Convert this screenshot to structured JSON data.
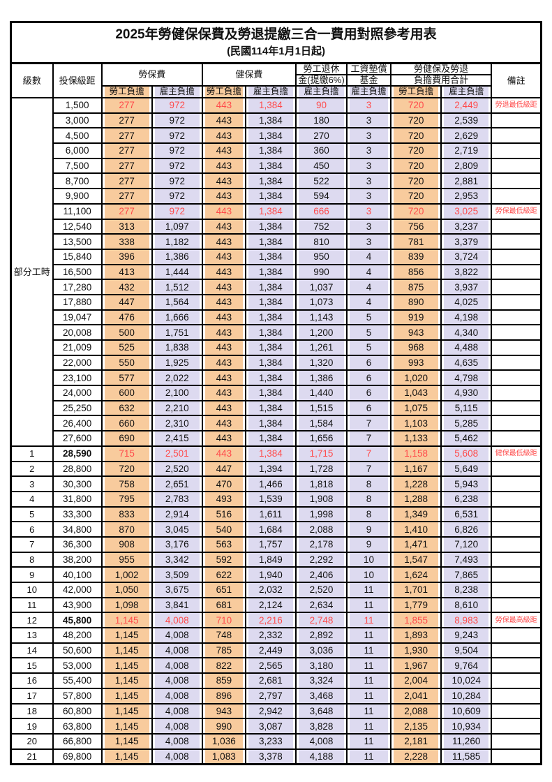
{
  "title": "2025年勞健保保費及勞退提繳三合一費用對照參考用表",
  "subtitle": "(民國114年1月1日起)",
  "colors": {
    "employee_fill": "#F8CB9D",
    "employer_fill": "#DDDAF0",
    "highlight_red": "#FF4B4B",
    "border": "#000000"
  },
  "header": {
    "level": "級數",
    "salary": "投保級距",
    "labor": "勞保費",
    "health": "健保費",
    "pension_l1": "勞工退休",
    "pension_l2": "金(提繳6%)",
    "wage_l1": "工資墊償",
    "wage_l2": "基金",
    "total_l1": "勞健保及勞退",
    "total_l2": "負擔費用合計",
    "remark": "備註",
    "employee": "勞工負擔",
    "employer": "雇主負擔"
  },
  "table": {
    "part_time_label": "部分工時",
    "part_time_span": 23,
    "rows": [
      {
        "lv": "",
        "sal": "1,500",
        "v": [
          "277",
          "972",
          "443",
          "1,384",
          "90",
          "3",
          "720",
          "2,449"
        ],
        "remark": "勞退最低級距",
        "red": true
      },
      {
        "lv": "",
        "sal": "3,000",
        "v": [
          "277",
          "972",
          "443",
          "1,384",
          "180",
          "3",
          "720",
          "2,539"
        ]
      },
      {
        "lv": "",
        "sal": "4,500",
        "v": [
          "277",
          "972",
          "443",
          "1,384",
          "270",
          "3",
          "720",
          "2,629"
        ]
      },
      {
        "lv": "",
        "sal": "6,000",
        "v": [
          "277",
          "972",
          "443",
          "1,384",
          "360",
          "3",
          "720",
          "2,719"
        ]
      },
      {
        "lv": "",
        "sal": "7,500",
        "v": [
          "277",
          "972",
          "443",
          "1,384",
          "450",
          "3",
          "720",
          "2,809"
        ]
      },
      {
        "lv": "",
        "sal": "8,700",
        "v": [
          "277",
          "972",
          "443",
          "1,384",
          "522",
          "3",
          "720",
          "2,881"
        ]
      },
      {
        "lv": "",
        "sal": "9,900",
        "v": [
          "277",
          "972",
          "443",
          "1,384",
          "594",
          "3",
          "720",
          "2,953"
        ]
      },
      {
        "lv": "",
        "sal": "11,100",
        "v": [
          "277",
          "972",
          "443",
          "1,384",
          "666",
          "3",
          "720",
          "3,025"
        ],
        "remark": "勞保最低級距",
        "red": true
      },
      {
        "lv": "",
        "sal": "12,540",
        "v": [
          "313",
          "1,097",
          "443",
          "1,384",
          "752",
          "3",
          "756",
          "3,237"
        ]
      },
      {
        "lv": "",
        "sal": "13,500",
        "v": [
          "338",
          "1,182",
          "443",
          "1,384",
          "810",
          "3",
          "781",
          "3,379"
        ]
      },
      {
        "lv": "",
        "sal": "15,840",
        "v": [
          "396",
          "1,386",
          "443",
          "1,384",
          "950",
          "4",
          "839",
          "3,724"
        ]
      },
      {
        "lv": "",
        "sal": "16,500",
        "v": [
          "413",
          "1,444",
          "443",
          "1,384",
          "990",
          "4",
          "856",
          "3,822"
        ]
      },
      {
        "lv": "",
        "sal": "17,280",
        "v": [
          "432",
          "1,512",
          "443",
          "1,384",
          "1,037",
          "4",
          "875",
          "3,937"
        ]
      },
      {
        "lv": "",
        "sal": "17,880",
        "v": [
          "447",
          "1,564",
          "443",
          "1,384",
          "1,073",
          "4",
          "890",
          "4,025"
        ]
      },
      {
        "lv": "",
        "sal": "19,047",
        "v": [
          "476",
          "1,666",
          "443",
          "1,384",
          "1,143",
          "5",
          "919",
          "4,198"
        ]
      },
      {
        "lv": "",
        "sal": "20,008",
        "v": [
          "500",
          "1,751",
          "443",
          "1,384",
          "1,200",
          "5",
          "943",
          "4,340"
        ]
      },
      {
        "lv": "",
        "sal": "21,009",
        "v": [
          "525",
          "1,838",
          "443",
          "1,384",
          "1,261",
          "5",
          "968",
          "4,488"
        ]
      },
      {
        "lv": "",
        "sal": "22,000",
        "v": [
          "550",
          "1,925",
          "443",
          "1,384",
          "1,320",
          "6",
          "993",
          "4,635"
        ]
      },
      {
        "lv": "",
        "sal": "23,100",
        "v": [
          "577",
          "2,022",
          "443",
          "1,384",
          "1,386",
          "6",
          "1,020",
          "4,798"
        ]
      },
      {
        "lv": "",
        "sal": "24,000",
        "v": [
          "600",
          "2,100",
          "443",
          "1,384",
          "1,440",
          "6",
          "1,043",
          "4,930"
        ]
      },
      {
        "lv": "",
        "sal": "25,250",
        "v": [
          "632",
          "2,210",
          "443",
          "1,384",
          "1,515",
          "6",
          "1,075",
          "5,115"
        ]
      },
      {
        "lv": "",
        "sal": "26,400",
        "v": [
          "660",
          "2,310",
          "443",
          "1,384",
          "1,584",
          "7",
          "1,103",
          "5,285"
        ]
      },
      {
        "lv": "",
        "sal": "27,600",
        "v": [
          "690",
          "2,415",
          "443",
          "1,384",
          "1,656",
          "7",
          "1,133",
          "5,462"
        ]
      },
      {
        "lv": "1",
        "sal": "28,590",
        "v": [
          "715",
          "2,501",
          "443",
          "1,384",
          "1,715",
          "7",
          "1,158",
          "5,608"
        ],
        "remark": "健保最低級距",
        "red": true,
        "bold": true
      },
      {
        "lv": "2",
        "sal": "28,800",
        "v": [
          "720",
          "2,520",
          "447",
          "1,394",
          "1,728",
          "7",
          "1,167",
          "5,649"
        ]
      },
      {
        "lv": "3",
        "sal": "30,300",
        "v": [
          "758",
          "2,651",
          "470",
          "1,466",
          "1,818",
          "8",
          "1,228",
          "5,943"
        ]
      },
      {
        "lv": "4",
        "sal": "31,800",
        "v": [
          "795",
          "2,783",
          "493",
          "1,539",
          "1,908",
          "8",
          "1,288",
          "6,238"
        ]
      },
      {
        "lv": "5",
        "sal": "33,300",
        "v": [
          "833",
          "2,914",
          "516",
          "1,611",
          "1,998",
          "8",
          "1,349",
          "6,531"
        ]
      },
      {
        "lv": "6",
        "sal": "34,800",
        "v": [
          "870",
          "3,045",
          "540",
          "1,684",
          "2,088",
          "9",
          "1,410",
          "6,826"
        ]
      },
      {
        "lv": "7",
        "sal": "36,300",
        "v": [
          "908",
          "3,176",
          "563",
          "1,757",
          "2,178",
          "9",
          "1,471",
          "7,120"
        ]
      },
      {
        "lv": "8",
        "sal": "38,200",
        "v": [
          "955",
          "3,342",
          "592",
          "1,849",
          "2,292",
          "10",
          "1,547",
          "7,493"
        ]
      },
      {
        "lv": "9",
        "sal": "40,100",
        "v": [
          "1,002",
          "3,509",
          "622",
          "1,940",
          "2,406",
          "10",
          "1,624",
          "7,865"
        ]
      },
      {
        "lv": "10",
        "sal": "42,000",
        "v": [
          "1,050",
          "3,675",
          "651",
          "2,032",
          "2,520",
          "11",
          "1,701",
          "8,238"
        ]
      },
      {
        "lv": "11",
        "sal": "43,900",
        "v": [
          "1,098",
          "3,841",
          "681",
          "2,124",
          "2,634",
          "11",
          "1,779",
          "8,610"
        ]
      },
      {
        "lv": "12",
        "sal": "45,800",
        "v": [
          "1,145",
          "4,008",
          "710",
          "2,216",
          "2,748",
          "11",
          "1,855",
          "8,983"
        ],
        "remark": "勞保最高級距",
        "red": true,
        "bold": true
      },
      {
        "lv": "13",
        "sal": "48,200",
        "v": [
          "1,145",
          "4,008",
          "748",
          "2,332",
          "2,892",
          "11",
          "1,893",
          "9,243"
        ]
      },
      {
        "lv": "14",
        "sal": "50,600",
        "v": [
          "1,145",
          "4,008",
          "785",
          "2,449",
          "3,036",
          "11",
          "1,930",
          "9,504"
        ]
      },
      {
        "lv": "15",
        "sal": "53,000",
        "v": [
          "1,145",
          "4,008",
          "822",
          "2,565",
          "3,180",
          "11",
          "1,967",
          "9,764"
        ]
      },
      {
        "lv": "16",
        "sal": "55,400",
        "v": [
          "1,145",
          "4,008",
          "859",
          "2,681",
          "3,324",
          "11",
          "2,004",
          "10,024"
        ]
      },
      {
        "lv": "17",
        "sal": "57,800",
        "v": [
          "1,145",
          "4,008",
          "896",
          "2,797",
          "3,468",
          "11",
          "2,041",
          "10,284"
        ]
      },
      {
        "lv": "18",
        "sal": "60,800",
        "v": [
          "1,145",
          "4,008",
          "943",
          "2,942",
          "3,648",
          "11",
          "2,088",
          "10,609"
        ]
      },
      {
        "lv": "19",
        "sal": "63,800",
        "v": [
          "1,145",
          "4,008",
          "990",
          "3,087",
          "3,828",
          "11",
          "2,135",
          "10,934"
        ]
      },
      {
        "lv": "20",
        "sal": "66,800",
        "v": [
          "1,145",
          "4,008",
          "1,036",
          "3,233",
          "4,008",
          "11",
          "2,181",
          "11,260"
        ]
      },
      {
        "lv": "21",
        "sal": "69,800",
        "v": [
          "1,145",
          "4,008",
          "1,083",
          "3,378",
          "4,188",
          "11",
          "2,228",
          "11,585"
        ]
      }
    ]
  }
}
